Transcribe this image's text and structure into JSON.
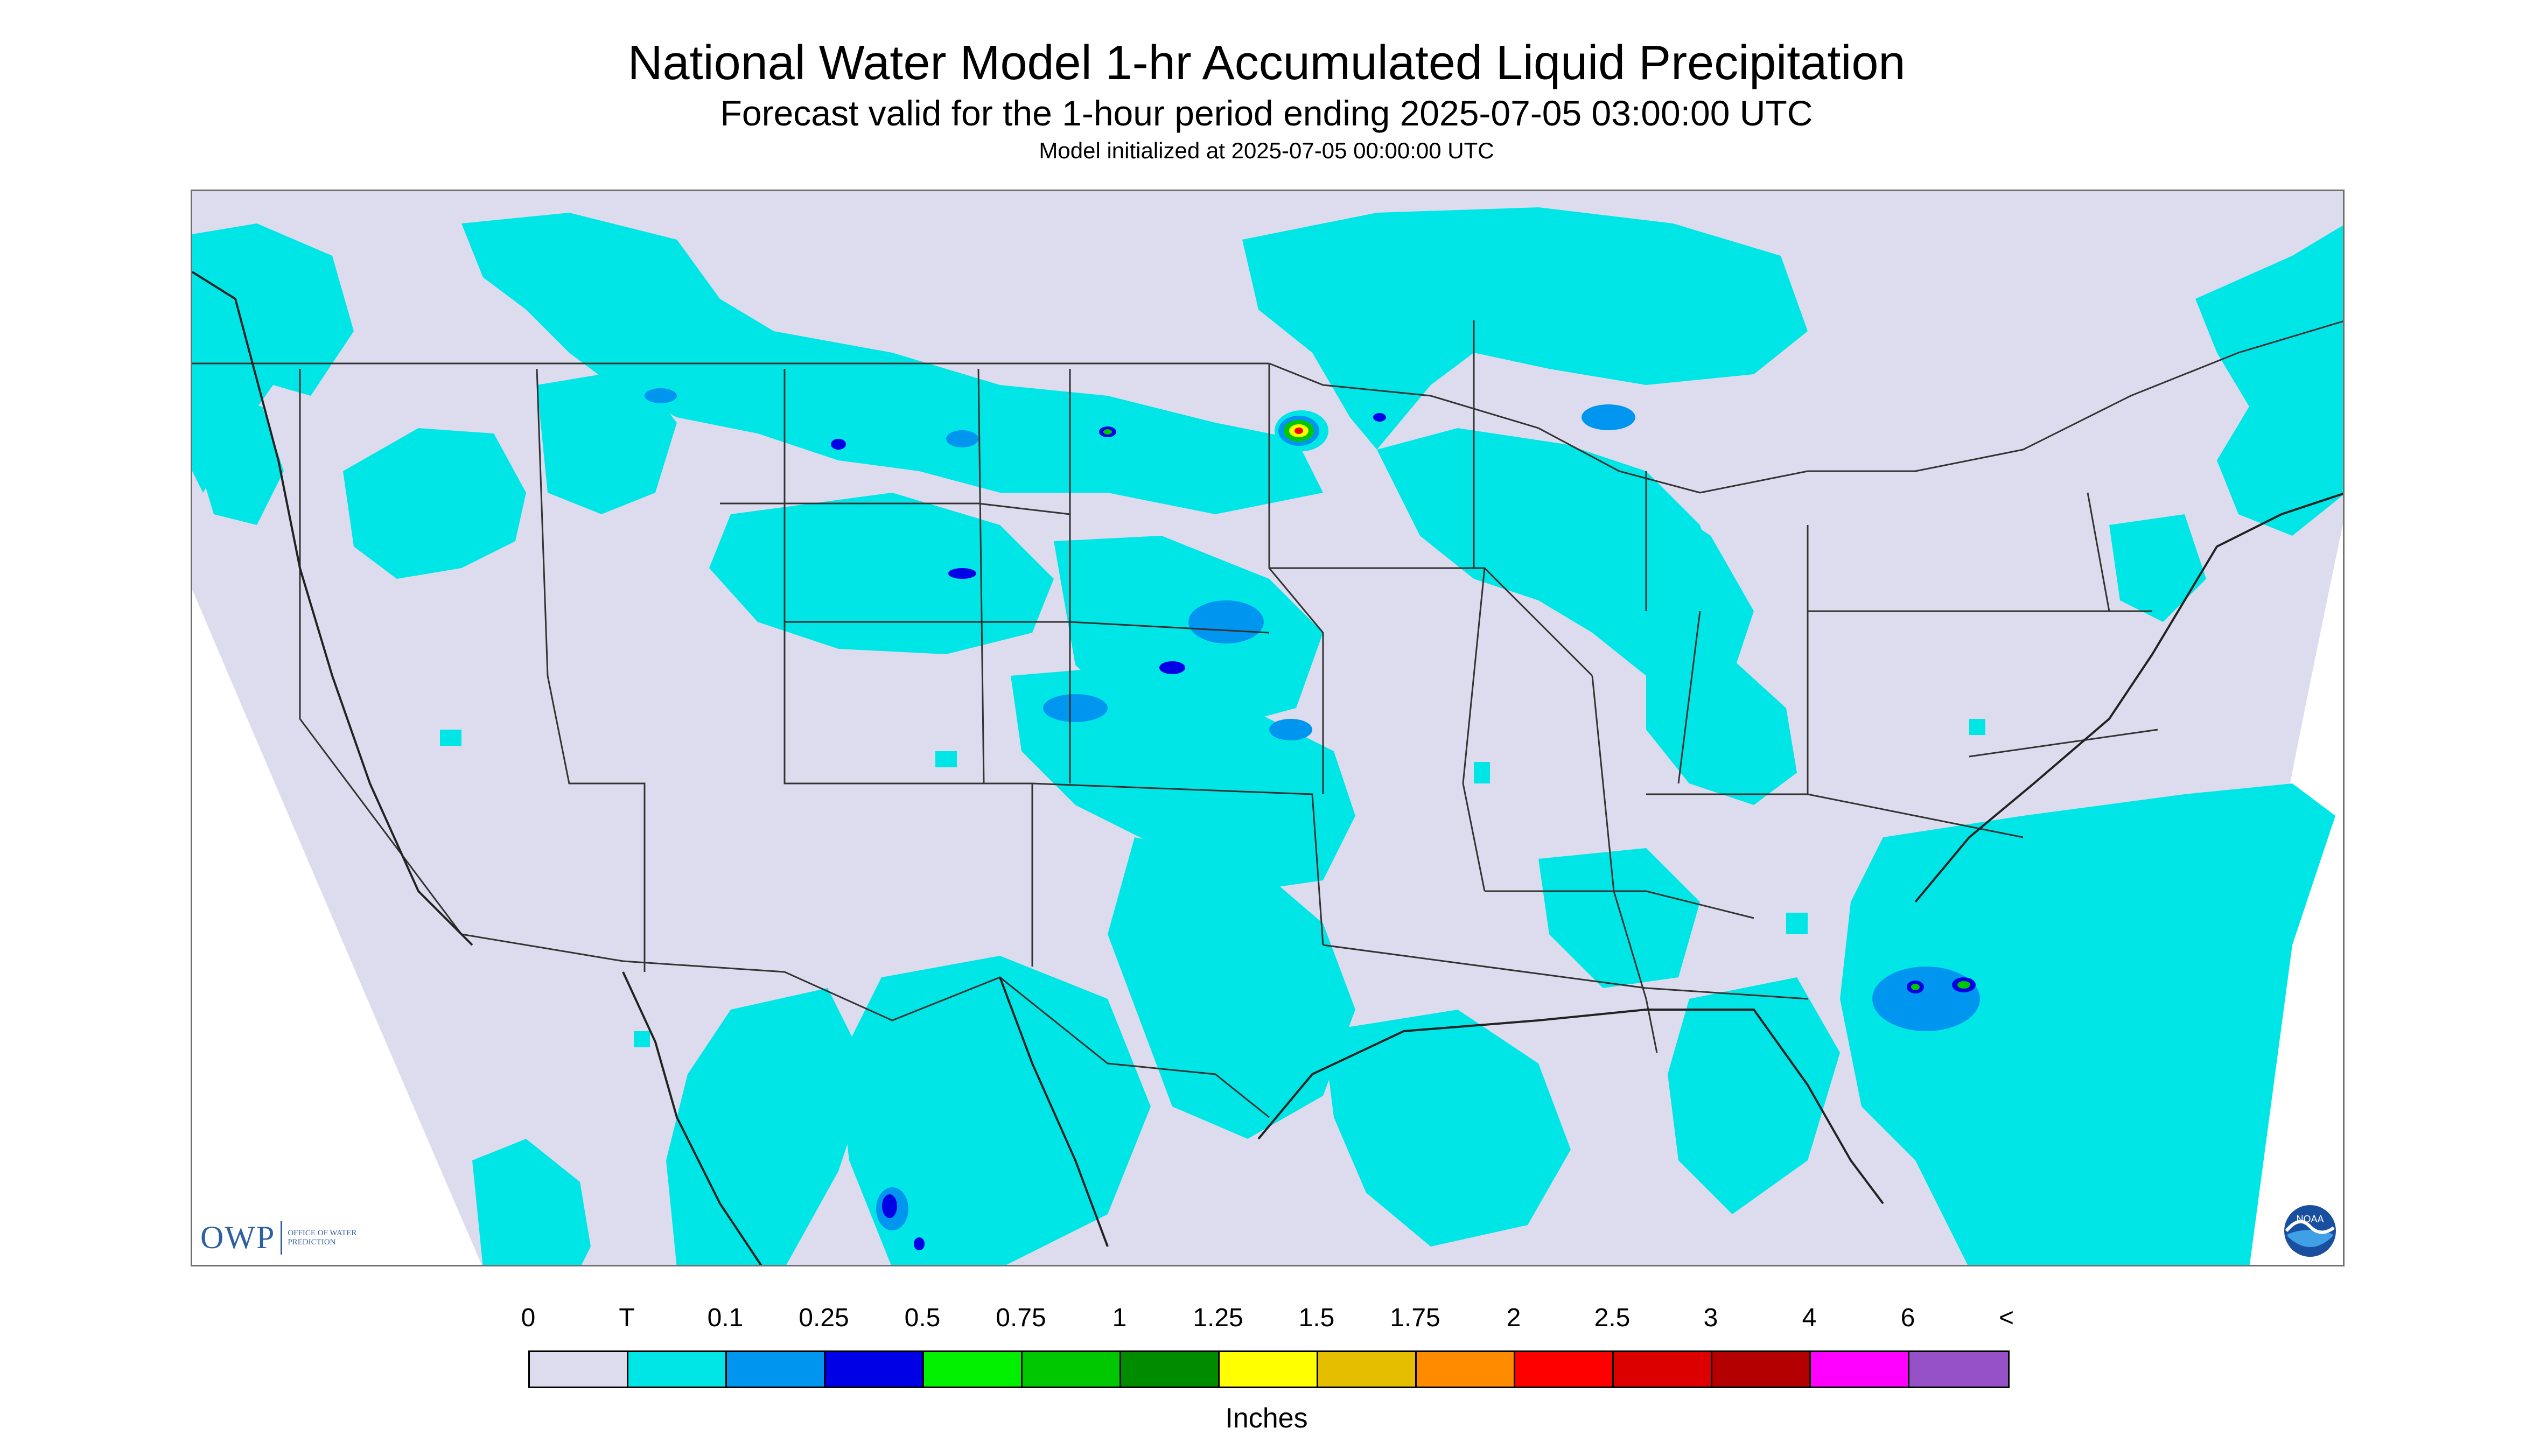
{
  "header": {
    "title": "National Water Model 1-hr Accumulated Liquid Precipitation",
    "subtitle": "Forecast valid for the 1-hour period ending 2025-07-05 03:00:00 UTC",
    "init": "Model initialized at 2025-07-05 00:00:00 UTC"
  },
  "legend": {
    "labels": [
      "0",
      "T",
      "0.1",
      "0.25",
      "0.5",
      "0.75",
      "1",
      "1.25",
      "1.5",
      "1.75",
      "2",
      "2.5",
      "3",
      "4",
      "6",
      "<"
    ],
    "colors": [
      "#dcdcee",
      "#00e6e6",
      "#0096f0",
      "#0000e6",
      "#00f000",
      "#00c800",
      "#008c00",
      "#ffff00",
      "#e6be00",
      "#ff8c00",
      "#ff0000",
      "#dc0000",
      "#b40000",
      "#ff00ff",
      "#9650c8"
    ],
    "unit": "Inches"
  },
  "logos": {
    "owp_main": "OWP",
    "owp_sub": "OFFICE OF WATER PREDICTION",
    "noaa": "NOAA"
  },
  "map": {
    "background": "#dcdcee",
    "precip_light": "#00e6e6",
    "precip_moderate": "#0096f0",
    "precip_heavy": "#0000e6",
    "border_color": "#333333"
  }
}
